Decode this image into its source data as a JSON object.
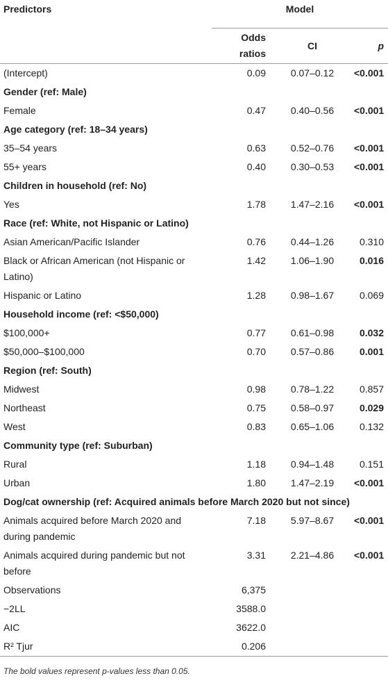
{
  "header": {
    "predictors": "Predictors",
    "model": "Model",
    "columns": [
      "Odds ratios",
      "CI",
      "p"
    ]
  },
  "rows": [
    {
      "label": "(Intercept)",
      "or": "0.09",
      "ci": "0.07–0.12",
      "p": "<0.001",
      "p_bold": true
    },
    {
      "group": "Gender (ref: Male)"
    },
    {
      "label": "Female",
      "or": "0.47",
      "ci": "0.40–0.56",
      "p": "<0.001",
      "p_bold": true
    },
    {
      "group": "Age category (ref: 18–34 years)"
    },
    {
      "label": "35–54 years",
      "or": "0.63",
      "ci": "0.52–0.76",
      "p": "<0.001",
      "p_bold": true
    },
    {
      "label": "55+ years",
      "or": "0.40",
      "ci": "0.30–0.53",
      "p": "<0.001",
      "p_bold": true
    },
    {
      "group": "Children in household (ref: No)"
    },
    {
      "label": "Yes",
      "or": "1.78",
      "ci": "1.47–2.16",
      "p": "<0.001",
      "p_bold": true
    },
    {
      "group": "Race (ref: White, not Hispanic or Latino)"
    },
    {
      "label": "Asian American/Pacific Islander",
      "or": "0.76",
      "ci": "0.44–1.26",
      "p": "0.310",
      "p_bold": false
    },
    {
      "label": "Black or African American (not Hispanic or Latino)",
      "or": "1.42",
      "ci": "1.06–1.90",
      "p": "0.016",
      "p_bold": true
    },
    {
      "label": "Hispanic or Latino",
      "or": "1.28",
      "ci": "0.98–1.67",
      "p": "0.069",
      "p_bold": false
    },
    {
      "group": "Household income (ref: <$50,000)"
    },
    {
      "label": "$100,000+",
      "or": "0.77",
      "ci": "0.61–0.98",
      "p": "0.032",
      "p_bold": true
    },
    {
      "label": "$50,000–$100,000",
      "or": "0.70",
      "ci": "0.57–0.86",
      "p": "0.001",
      "p_bold": true
    },
    {
      "group": "Region (ref: South)"
    },
    {
      "label": "Midwest",
      "or": "0.98",
      "ci": "0.78–1.22",
      "p": "0.857",
      "p_bold": false
    },
    {
      "label": "Northeast",
      "or": "0.75",
      "ci": "0.58–0.97",
      "p": "0.029",
      "p_bold": true
    },
    {
      "label": "West",
      "or": "0.83",
      "ci": "0.65–1.06",
      "p": "0.132",
      "p_bold": false
    },
    {
      "group": "Community type (ref: Suburban)"
    },
    {
      "label": "Rural",
      "or": "1.18",
      "ci": "0.94–1.48",
      "p": "0.151",
      "p_bold": false
    },
    {
      "label": "Urban",
      "or": "1.80",
      "ci": "1.47–2.19",
      "p": "<0.001",
      "p_bold": true
    },
    {
      "group": "Dog/cat ownership (ref: Acquired animals before March 2020 but not since)"
    },
    {
      "label": "Animals acquired before March 2020 and during pandemic",
      "or": "7.18",
      "ci": "5.97–8.67",
      "p": "<0.001",
      "p_bold": true
    },
    {
      "label": "Animals acquired during pandemic but not before",
      "or": "3.31",
      "ci": "2.21–4.86",
      "p": "<0.001",
      "p_bold": true
    }
  ],
  "summary": [
    {
      "label": "Observations",
      "value": "6,375"
    },
    {
      "label": "−2LL",
      "value": "3588.0"
    },
    {
      "label": "AIC",
      "value": "3622.0"
    },
    {
      "label": "R² Tjur",
      "value": "0.206"
    }
  ],
  "footnote": "The bold values represent p-values less than 0.05."
}
